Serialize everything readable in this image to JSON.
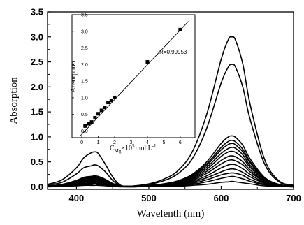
{
  "chart_data": [
    {
      "type": "line",
      "title": "",
      "xlabel": "Wavelenth (nm)",
      "ylabel": "Absorption",
      "xlim": [
        360,
        700
      ],
      "ylim": [
        -0.05,
        3.5
      ],
      "xticks": [
        400,
        500,
        600,
        700
      ],
      "yticks": [
        0.0,
        0.5,
        1.0,
        1.5,
        2.0,
        2.5,
        3.0,
        3.5
      ],
      "ytick_labels": [
        "0.0",
        "0.5",
        "1.0",
        "1.5",
        "2.0",
        "2.5",
        "3.0",
        "3.5"
      ],
      "grid": false,
      "x": [
        360,
        380,
        400,
        410,
        420,
        425,
        430,
        440,
        450,
        460,
        470,
        480,
        500,
        520,
        540,
        560,
        580,
        600,
        610,
        615,
        620,
        630,
        640,
        660,
        680,
        700
      ],
      "series": [
        {
          "values": [
            0.05,
            0.14,
            0.38,
            0.58,
            0.68,
            0.7,
            0.67,
            0.45,
            0.2,
            0.04,
            0.01,
            0.02,
            0.06,
            0.15,
            0.32,
            0.7,
            1.45,
            2.55,
            2.95,
            3.0,
            2.93,
            2.45,
            1.65,
            0.55,
            0.12,
            0.03
          ]
        },
        {
          "values": [
            0.04,
            0.09,
            0.26,
            0.38,
            0.42,
            0.44,
            0.42,
            0.3,
            0.13,
            0.03,
            0.01,
            0.02,
            0.05,
            0.12,
            0.26,
            0.56,
            1.17,
            2.08,
            2.4,
            2.45,
            2.39,
            1.99,
            1.35,
            0.46,
            0.1,
            0.03
          ]
        },
        {
          "values": [
            0.02,
            0.05,
            0.13,
            0.19,
            0.21,
            0.22,
            0.21,
            0.15,
            0.07,
            0.02,
            0.01,
            0.01,
            0.03,
            0.06,
            0.12,
            0.25,
            0.5,
            0.87,
            1.0,
            1.02,
            0.99,
            0.83,
            0.56,
            0.19,
            0.05,
            0.02
          ]
        },
        {
          "values": [
            0.02,
            0.04,
            0.12,
            0.17,
            0.19,
            0.2,
            0.19,
            0.14,
            0.06,
            0.02,
            0.01,
            0.01,
            0.03,
            0.05,
            0.11,
            0.23,
            0.46,
            0.79,
            0.91,
            0.93,
            0.9,
            0.75,
            0.51,
            0.17,
            0.04,
            0.02
          ]
        },
        {
          "values": [
            0.02,
            0.04,
            0.11,
            0.16,
            0.18,
            0.19,
            0.18,
            0.13,
            0.06,
            0.02,
            0.01,
            0.01,
            0.03,
            0.05,
            0.1,
            0.21,
            0.43,
            0.74,
            0.85,
            0.87,
            0.84,
            0.7,
            0.48,
            0.16,
            0.04,
            0.02
          ]
        },
        {
          "values": [
            0.02,
            0.03,
            0.1,
            0.15,
            0.17,
            0.18,
            0.17,
            0.12,
            0.05,
            0.02,
            0.01,
            0.01,
            0.02,
            0.05,
            0.09,
            0.19,
            0.39,
            0.67,
            0.77,
            0.79,
            0.77,
            0.64,
            0.43,
            0.15,
            0.04,
            0.01
          ]
        },
        {
          "values": [
            0.01,
            0.03,
            0.09,
            0.13,
            0.15,
            0.16,
            0.15,
            0.11,
            0.05,
            0.01,
            0.01,
            0.01,
            0.02,
            0.04,
            0.08,
            0.17,
            0.35,
            0.61,
            0.7,
            0.71,
            0.69,
            0.58,
            0.39,
            0.13,
            0.03,
            0.01
          ]
        },
        {
          "values": [
            0.01,
            0.03,
            0.08,
            0.12,
            0.14,
            0.14,
            0.14,
            0.1,
            0.04,
            0.01,
            0.01,
            0.01,
            0.02,
            0.04,
            0.07,
            0.15,
            0.31,
            0.53,
            0.61,
            0.62,
            0.6,
            0.5,
            0.34,
            0.11,
            0.03,
            0.01
          ]
        },
        {
          "values": [
            0.01,
            0.02,
            0.07,
            0.1,
            0.12,
            0.12,
            0.12,
            0.08,
            0.04,
            0.01,
            0.01,
            0.01,
            0.02,
            0.03,
            0.06,
            0.13,
            0.27,
            0.46,
            0.53,
            0.54,
            0.52,
            0.44,
            0.3,
            0.1,
            0.02,
            0.01
          ]
        },
        {
          "values": [
            0.01,
            0.02,
            0.06,
            0.09,
            0.1,
            0.1,
            0.1,
            0.07,
            0.03,
            0.01,
            0.01,
            0.01,
            0.02,
            0.03,
            0.05,
            0.11,
            0.22,
            0.38,
            0.44,
            0.45,
            0.44,
            0.36,
            0.25,
            0.08,
            0.02,
            0.01
          ]
        },
        {
          "values": [
            0.01,
            0.02,
            0.05,
            0.07,
            0.08,
            0.08,
            0.08,
            0.06,
            0.03,
            0.01,
            0.01,
            0.01,
            0.01,
            0.02,
            0.04,
            0.09,
            0.18,
            0.3,
            0.35,
            0.36,
            0.35,
            0.29,
            0.2,
            0.07,
            0.02,
            0.01
          ]
        },
        {
          "values": [
            0.01,
            0.01,
            0.04,
            0.06,
            0.07,
            0.07,
            0.07,
            0.05,
            0.02,
            0.01,
            0.01,
            0.01,
            0.01,
            0.02,
            0.03,
            0.07,
            0.14,
            0.24,
            0.27,
            0.28,
            0.27,
            0.23,
            0.15,
            0.05,
            0.01,
            0.01
          ]
        },
        {
          "values": [
            0.01,
            0.01,
            0.03,
            0.05,
            0.05,
            0.06,
            0.05,
            0.04,
            0.02,
            0.01,
            0.0,
            0.0,
            0.01,
            0.01,
            0.02,
            0.05,
            0.1,
            0.17,
            0.2,
            0.21,
            0.2,
            0.16,
            0.11,
            0.04,
            0.01,
            0.0
          ]
        },
        {
          "values": [
            0.0,
            0.01,
            0.02,
            0.03,
            0.03,
            0.03,
            0.03,
            0.02,
            0.01,
            0.0,
            0.0,
            0.0,
            0.01,
            0.01,
            0.01,
            0.03,
            0.05,
            0.09,
            0.1,
            0.11,
            0.1,
            0.08,
            0.06,
            0.02,
            0.01,
            0.0
          ]
        }
      ]
    },
    {
      "type": "scatter",
      "title": "",
      "xlabel": "C",
      "xlabel_sub": "Mg",
      "xlabel_rest": "×10",
      "xlabel_sup": "5",
      "xlabel_unit": "mol L",
      "xlabel_unit_sup": "-1",
      "ylabel": "Absorption",
      "xlim": [
        -0.6,
        6.9
      ],
      "ylim": [
        -0.2,
        3.5
      ],
      "xticks": [
        0,
        1,
        2,
        3,
        4,
        5,
        6
      ],
      "yticks": [
        0.0,
        0.5,
        1.0,
        1.5,
        2.0,
        2.5,
        3.0,
        3.5
      ],
      "ytick_labels": [
        "0.0",
        "0.5",
        "1.0",
        "1.5",
        "2.0",
        "2.5",
        "3.0",
        "3.5"
      ],
      "x": [
        0.2,
        0.4,
        0.6,
        0.8,
        1.0,
        1.2,
        1.4,
        1.6,
        1.8,
        2.0,
        4.0,
        6.0
      ],
      "y": [
        0.15,
        0.22,
        0.27,
        0.4,
        0.52,
        0.62,
        0.71,
        0.86,
        0.92,
        1.01,
        2.08,
        3.05
      ],
      "fit_line": {
        "x": [
          -0.1,
          6.5
        ],
        "y": [
          -0.15,
          3.3
        ]
      },
      "annotation": "R=0.99953"
    }
  ]
}
